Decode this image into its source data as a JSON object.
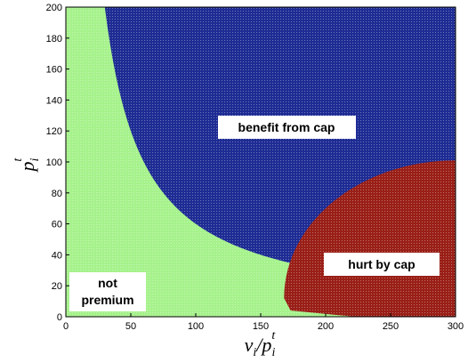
{
  "chart_data": {
    "type": "area",
    "x_range": [
      0,
      300
    ],
    "y_range": [
      0,
      200
    ],
    "x_ticks": [
      "0",
      "50",
      "100",
      "150",
      "200",
      "250",
      "300"
    ],
    "y_ticks": [
      "0",
      "20",
      "40",
      "60",
      "80",
      "100",
      "120",
      "140",
      "160",
      "180",
      "200"
    ],
    "xlabel": {
      "base": "v",
      "sub1": "i",
      "slash": "/p",
      "sub2": "i",
      "sup": "t"
    },
    "ylabel": {
      "base": "p",
      "sub": "i",
      "sup": "t"
    },
    "regions": [
      {
        "label": "not premium",
        "label_lines": [
          "not",
          "premium"
        ],
        "color": "#a6f28c"
      },
      {
        "label": "benefit from cap",
        "color": "#1e2c94"
      },
      {
        "label": "hurt by cap",
        "color": "#991f17"
      }
    ],
    "boundary_not_premium": {
      "note": "x = k / p",
      "k": 6000,
      "x_at_top": 30
    },
    "boundary_hurt_by_cap": {
      "x_start": 168,
      "y_start": 12,
      "y_end_at_right": 101
    }
  }
}
